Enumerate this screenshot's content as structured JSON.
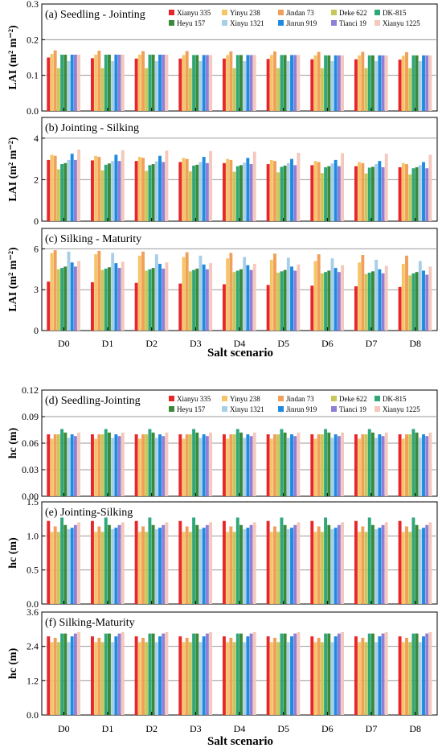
{
  "figure": {
    "top_xtitle": "Salt scenario",
    "bottom_xtitle": "Salt scenario"
  },
  "colors": [
    "#e8262a",
    "#f5c567",
    "#f0a05a",
    "#c8c85a",
    "#2fa877",
    "#3a8a3a",
    "#a8cfe8",
    "#1f8be0",
    "#8f7fd6",
    "#f4c8bc",
    "#d8cde8"
  ],
  "varieties": [
    "Xianyu 335",
    "Yinyu 238",
    "Jindan 73",
    "Deke 622",
    "DK-815",
    "Heyu 157",
    "Xinyu 1321",
    "Jinrun 919",
    "Tianci 19",
    "Xianyu 1225"
  ],
  "chart_data": [
    {
      "type": "bar",
      "title": "(a) Seedling - Jointing",
      "ylabel": "LAI (m² m⁻²)",
      "ylim": [
        0,
        0.3
      ],
      "yticks": [
        "0.0",
        "0.1",
        "0.2",
        "0.3"
      ],
      "yticks_values": [
        0,
        0.1,
        0.2,
        0.3
      ],
      "grid": true,
      "legend": "top-right",
      "categories": [
        "D0",
        "D1",
        "D2",
        "D3",
        "D4",
        "D5",
        "D6",
        "D7",
        "D8"
      ],
      "series_names": [
        "Xianyu 335",
        "Yinyu 238",
        "Jindan 73",
        "Deke 622",
        "DK-815",
        "Heyu 157",
        "Xinyu 1321",
        "Jinrun 919",
        "Tianci 19",
        "Xianyu 1225"
      ],
      "values_by_variety": [
        [
          0.15,
          0.148,
          0.147,
          0.147,
          0.147,
          0.146,
          0.145,
          0.145,
          0.144
        ],
        [
          0.16,
          0.158,
          0.158,
          0.157,
          0.157,
          0.157,
          0.156,
          0.156,
          0.155
        ],
        [
          0.17,
          0.169,
          0.168,
          0.168,
          0.167,
          0.167,
          0.166,
          0.166,
          0.165
        ],
        [
          0.12,
          0.12,
          0.12,
          0.12,
          0.12,
          0.12,
          0.12,
          0.12,
          0.12
        ],
        [
          0.158,
          0.158,
          0.158,
          0.157,
          0.157,
          0.157,
          0.156,
          0.156,
          0.156
        ],
        [
          0.158,
          0.158,
          0.158,
          0.157,
          0.157,
          0.157,
          0.156,
          0.156,
          0.156
        ],
        [
          0.14,
          0.14,
          0.14,
          0.14,
          0.14,
          0.14,
          0.14,
          0.14,
          0.14
        ],
        [
          0.158,
          0.158,
          0.158,
          0.157,
          0.157,
          0.157,
          0.156,
          0.156,
          0.156
        ],
        [
          0.158,
          0.158,
          0.158,
          0.157,
          0.157,
          0.157,
          0.156,
          0.156,
          0.156
        ],
        [
          0.158,
          0.158,
          0.158,
          0.157,
          0.157,
          0.157,
          0.156,
          0.156,
          0.156
        ]
      ]
    },
    {
      "type": "bar",
      "title": "(b) Jointing - Silking",
      "ylabel": "LAI (m² m⁻²)",
      "ylim": [
        0,
        5
      ],
      "yticks": [
        "0",
        "2",
        "4"
      ],
      "yticks_values": [
        0,
        2,
        4
      ],
      "grid": true,
      "categories": [
        "D0",
        "D1",
        "D2",
        "D3",
        "D4",
        "D5",
        "D6",
        "D7",
        "D8"
      ],
      "series_names": [
        "Xianyu 335",
        "Yinyu 238",
        "Jindan 73",
        "Deke 622",
        "DK-815",
        "Heyu 157",
        "Xinyu 1321",
        "Jinrun 919",
        "Tianci 19",
        "Xianyu 1225"
      ],
      "values_by_variety": [
        [
          2.95,
          2.93,
          2.9,
          2.85,
          2.8,
          2.75,
          2.7,
          2.65,
          2.6
        ],
        [
          3.2,
          3.15,
          3.1,
          3.05,
          3.0,
          2.95,
          2.9,
          2.85,
          2.8
        ],
        [
          3.15,
          3.1,
          3.05,
          3.0,
          2.95,
          2.9,
          2.85,
          2.8,
          2.75
        ],
        [
          2.5,
          2.45,
          2.42,
          2.4,
          2.38,
          2.35,
          2.32,
          2.3,
          2.25
        ],
        [
          2.75,
          2.72,
          2.7,
          2.68,
          2.65,
          2.62,
          2.6,
          2.58,
          2.55
        ],
        [
          2.8,
          2.78,
          2.75,
          2.72,
          2.7,
          2.68,
          2.65,
          2.62,
          2.6
        ],
        [
          2.95,
          2.9,
          2.88,
          2.85,
          2.82,
          2.8,
          2.78,
          2.75,
          2.7
        ],
        [
          3.25,
          3.2,
          3.15,
          3.1,
          3.05,
          3.0,
          2.95,
          2.9,
          2.85
        ],
        [
          2.95,
          2.9,
          2.85,
          2.8,
          2.75,
          2.7,
          2.65,
          2.6,
          2.55
        ],
        [
          3.45,
          3.42,
          3.4,
          3.38,
          3.35,
          3.3,
          3.28,
          3.25,
          3.2
        ]
      ]
    },
    {
      "type": "bar",
      "title": "(c) Silking - Maturity",
      "ylabel": "LAI (m² m⁻²)",
      "ylim": [
        0,
        7.5
      ],
      "yticks": [
        "0",
        "3",
        "6"
      ],
      "yticks_values": [
        0,
        3,
        6
      ],
      "grid": true,
      "categories": [
        "D0",
        "D1",
        "D2",
        "D3",
        "D4",
        "D5",
        "D6",
        "D7",
        "D8"
      ],
      "series_names": [
        "Xianyu 335",
        "Yinyu 238",
        "Jindan 73",
        "Deke 622",
        "DK-815",
        "Heyu 157",
        "Xinyu 1321",
        "Jinrun 919",
        "Tianci 19",
        "Xianyu 1225"
      ],
      "values_by_variety": [
        [
          3.6,
          3.55,
          3.5,
          3.45,
          3.4,
          3.35,
          3.3,
          3.25,
          3.2
        ],
        [
          5.7,
          5.6,
          5.5,
          5.4,
          5.3,
          5.2,
          5.1,
          5.0,
          4.9
        ],
        [
          5.9,
          5.85,
          5.8,
          5.75,
          5.7,
          5.65,
          5.6,
          5.55,
          5.5
        ],
        [
          4.5,
          4.45,
          4.4,
          4.35,
          4.3,
          4.25,
          4.2,
          4.15,
          4.05
        ],
        [
          4.6,
          4.55,
          4.5,
          4.45,
          4.4,
          4.35,
          4.3,
          4.25,
          4.2
        ],
        [
          4.7,
          4.65,
          4.6,
          4.55,
          4.5,
          4.45,
          4.4,
          4.35,
          4.3
        ],
        [
          5.8,
          5.7,
          5.6,
          5.5,
          5.4,
          5.35,
          5.3,
          5.2,
          5.1
        ],
        [
          5.0,
          4.95,
          4.9,
          4.85,
          4.8,
          4.7,
          4.6,
          4.5,
          4.4
        ],
        [
          4.7,
          4.6,
          4.55,
          4.5,
          4.45,
          4.4,
          4.3,
          4.2,
          4.1
        ],
        [
          5.1,
          5.05,
          5.0,
          4.95,
          4.9,
          4.85,
          4.8,
          4.75,
          4.7
        ]
      ]
    },
    {
      "type": "bar",
      "title": "(d) Seedling-Jointing",
      "ylabel": "hc (m)",
      "ylim": [
        0,
        0.12
      ],
      "yticks": [
        "0.00",
        "0.03",
        "0.06",
        "0.09",
        "0.12"
      ],
      "yticks_values": [
        0,
        0.03,
        0.06,
        0.09,
        0.12
      ],
      "grid": true,
      "legend": "top-right",
      "categories": [
        "D0",
        "D1",
        "D2",
        "D3",
        "D4",
        "D5",
        "D6",
        "D7",
        "D8"
      ],
      "series_names": [
        "Xianyu 335",
        "Yinyu 238",
        "Jindan 73",
        "Deke 622",
        "DK-815",
        "Heyu 157",
        "Xinyu 1321",
        "Jinrun 919",
        "Tianci 19",
        "Xianyu 1225"
      ],
      "values_by_variety": [
        [
          0.07,
          0.07,
          0.07,
          0.07,
          0.07,
          0.07,
          0.07,
          0.07,
          0.07
        ],
        [
          0.065,
          0.065,
          0.065,
          0.065,
          0.065,
          0.065,
          0.065,
          0.065,
          0.065
        ],
        [
          0.07,
          0.07,
          0.07,
          0.07,
          0.07,
          0.07,
          0.07,
          0.07,
          0.07
        ],
        [
          0.07,
          0.07,
          0.07,
          0.07,
          0.07,
          0.07,
          0.07,
          0.07,
          0.07
        ],
        [
          0.076,
          0.076,
          0.076,
          0.076,
          0.076,
          0.076,
          0.076,
          0.076,
          0.076
        ],
        [
          0.072,
          0.072,
          0.072,
          0.072,
          0.072,
          0.072,
          0.072,
          0.072,
          0.072
        ],
        [
          0.066,
          0.066,
          0.066,
          0.066,
          0.066,
          0.066,
          0.066,
          0.066,
          0.066
        ],
        [
          0.07,
          0.07,
          0.07,
          0.07,
          0.07,
          0.07,
          0.07,
          0.07,
          0.07
        ],
        [
          0.068,
          0.068,
          0.068,
          0.068,
          0.068,
          0.068,
          0.068,
          0.068,
          0.068
        ],
        [
          0.072,
          0.072,
          0.072,
          0.072,
          0.072,
          0.072,
          0.072,
          0.072,
          0.072
        ]
      ]
    },
    {
      "type": "bar",
      "title": "(e) Jointing-Silking",
      "ylabel": "hc (m)",
      "ylim": [
        0,
        1.5
      ],
      "yticks": [
        "0.0",
        "0.5",
        "1.0",
        "1.5"
      ],
      "yticks_values": [
        0,
        0.5,
        1.0,
        1.5
      ],
      "grid": true,
      "categories": [
        "D0",
        "D1",
        "D2",
        "D3",
        "D4",
        "D5",
        "D6",
        "D7",
        "D8"
      ],
      "series_names": [
        "Xianyu 335",
        "Yinyu 238",
        "Jindan 73",
        "Deke 622",
        "DK-815",
        "Heyu 157",
        "Xinyu 1321",
        "Jinrun 919",
        "Tianci 19",
        "Xianyu 1225"
      ],
      "values_by_variety": [
        [
          1.22,
          1.22,
          1.22,
          1.22,
          1.22,
          1.22,
          1.22,
          1.22,
          1.22
        ],
        [
          1.06,
          1.06,
          1.06,
          1.06,
          1.06,
          1.06,
          1.06,
          1.06,
          1.06
        ],
        [
          1.14,
          1.14,
          1.14,
          1.14,
          1.14,
          1.14,
          1.14,
          1.14,
          1.14
        ],
        [
          1.06,
          1.06,
          1.06,
          1.06,
          1.06,
          1.06,
          1.06,
          1.06,
          1.06
        ],
        [
          1.27,
          1.27,
          1.27,
          1.27,
          1.27,
          1.27,
          1.27,
          1.27,
          1.27
        ],
        [
          1.16,
          1.16,
          1.16,
          1.16,
          1.16,
          1.16,
          1.16,
          1.16,
          1.16
        ],
        [
          1.1,
          1.1,
          1.1,
          1.1,
          1.1,
          1.1,
          1.1,
          1.1,
          1.1
        ],
        [
          1.12,
          1.12,
          1.12,
          1.12,
          1.12,
          1.12,
          1.12,
          1.12,
          1.12
        ],
        [
          1.16,
          1.16,
          1.16,
          1.16,
          1.16,
          1.16,
          1.16,
          1.16,
          1.16
        ],
        [
          1.2,
          1.2,
          1.2,
          1.2,
          1.2,
          1.2,
          1.2,
          1.2,
          1.2
        ]
      ]
    },
    {
      "type": "bar",
      "title": "(f) Silking-Maturity",
      "ylabel": "hc (m)",
      "ylim": [
        0,
        3.6
      ],
      "yticks": [
        "0.0",
        "1.2",
        "2.4",
        "3.6"
      ],
      "yticks_values": [
        0,
        1.2,
        2.4,
        3.6
      ],
      "grid": true,
      "categories": [
        "D0",
        "D1",
        "D2",
        "D3",
        "D4",
        "D5",
        "D6",
        "D7",
        "D8"
      ],
      "series_names": [
        "Xianyu 335",
        "Yinyu 238",
        "Jindan 73",
        "Deke 622",
        "DK-815",
        "Heyu 157",
        "Xinyu 1321",
        "Jinrun 919",
        "Tianci 19",
        "Xianyu 1225"
      ],
      "values_by_variety": [
        [
          2.75,
          2.75,
          2.75,
          2.75,
          2.75,
          2.75,
          2.75,
          2.75,
          2.75
        ],
        [
          2.55,
          2.55,
          2.55,
          2.55,
          2.55,
          2.55,
          2.55,
          2.55,
          2.55
        ],
        [
          2.7,
          2.7,
          2.7,
          2.7,
          2.7,
          2.7,
          2.7,
          2.7,
          2.7
        ],
        [
          2.55,
          2.55,
          2.55,
          2.55,
          2.55,
          2.55,
          2.55,
          2.55,
          2.55
        ],
        [
          2.85,
          2.85,
          2.85,
          2.85,
          2.85,
          2.85,
          2.85,
          2.85,
          2.85
        ],
        [
          2.85,
          2.85,
          2.85,
          2.85,
          2.85,
          2.85,
          2.85,
          2.85,
          2.85
        ],
        [
          2.55,
          2.55,
          2.55,
          2.55,
          2.55,
          2.55,
          2.55,
          2.55,
          2.55
        ],
        [
          2.75,
          2.75,
          2.75,
          2.75,
          2.75,
          2.75,
          2.75,
          2.75,
          2.75
        ],
        [
          2.85,
          2.85,
          2.85,
          2.85,
          2.85,
          2.85,
          2.85,
          2.85,
          2.85
        ],
        [
          2.9,
          2.9,
          2.9,
          2.9,
          2.9,
          2.9,
          2.9,
          2.9,
          2.9
        ]
      ]
    }
  ]
}
